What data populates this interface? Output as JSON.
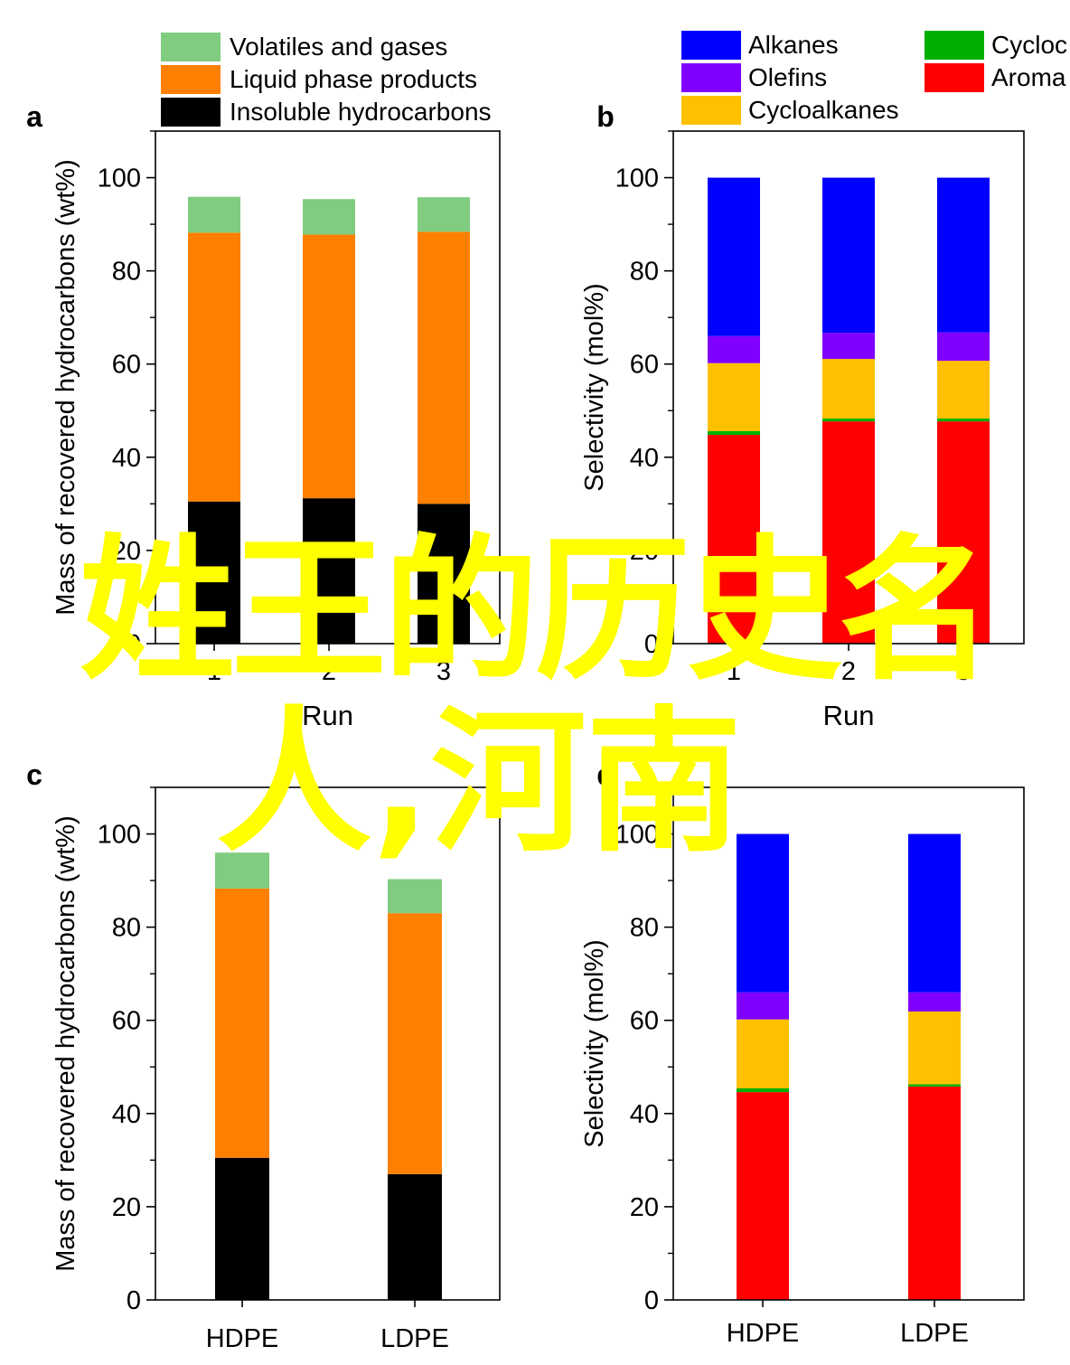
{
  "overlay_text": {
    "line1": "姓王的历史名",
    "line2": "人,河南",
    "color": "#ffff00"
  },
  "colors": {
    "volatiles": "#80cc80",
    "liquid": "#ff8000",
    "insoluble": "#000000",
    "alkanes": "#0000ff",
    "olefins": "#8000ff",
    "cycloalkanes": "#ffc000",
    "cycloolefins": "#00b000",
    "aromatics": "#ff0000"
  },
  "chart_data": [
    {
      "panel_label": "a",
      "type": "bar",
      "stacked": true,
      "categories": [
        "1",
        "2",
        "3"
      ],
      "xlabel": "Run",
      "ylabel": "Mass of recovered hydrocarbons (wt%)",
      "ylim": [
        0,
        110
      ],
      "yticks": [
        "0",
        "20",
        "40",
        "60",
        "80",
        "100"
      ],
      "legend": [
        "Volatiles and gases",
        "Liquid phase products",
        "Insoluble hydrocarbons"
      ],
      "series": [
        {
          "name": "Insoluble hydrocarbons",
          "color_key": "insoluble",
          "values": [
            30.5,
            31.2,
            30.0
          ]
        },
        {
          "name": "Liquid phase products",
          "color_key": "liquid",
          "values": [
            57.7,
            56.6,
            58.4
          ]
        },
        {
          "name": "Volatiles and gases",
          "color_key": "volatiles",
          "values": [
            7.7,
            7.6,
            7.4
          ]
        }
      ]
    },
    {
      "panel_label": "b",
      "type": "bar",
      "stacked": true,
      "categories": [
        "1",
        "2",
        "3"
      ],
      "xlabel": "Run",
      "ylabel": "Selectivity (mol%)",
      "ylim": [
        0,
        110
      ],
      "yticks": [
        "0",
        "20",
        "40",
        "60",
        "80",
        "100"
      ],
      "legend": [
        "Alkanes",
        "Olefins",
        "Cycloalkanes",
        "Cycloc",
        "Aroma"
      ],
      "series": [
        {
          "name": "Aroma",
          "color_key": "aromatics",
          "values": [
            44.8,
            47.7,
            47.7
          ]
        },
        {
          "name": "Cycloc",
          "color_key": "cycloolefins",
          "values": [
            0.8,
            0.6,
            0.6
          ]
        },
        {
          "name": "Cycloalkanes",
          "color_key": "cycloalkanes",
          "values": [
            14.6,
            12.8,
            12.4
          ]
        },
        {
          "name": "Olefins",
          "color_key": "olefins",
          "values": [
            5.8,
            5.6,
            6.1
          ]
        },
        {
          "name": "Alkanes",
          "color_key": "alkanes",
          "values": [
            34.0,
            33.3,
            33.2
          ]
        }
      ]
    },
    {
      "panel_label": "c",
      "type": "bar",
      "stacked": true,
      "categories": [
        "HDPE",
        "LDPE"
      ],
      "xlabel": "",
      "ylabel": "Mass of recovered hydrocarbons (wt%)",
      "ylim": [
        0,
        110
      ],
      "yticks": [
        "0",
        "20",
        "40",
        "60",
        "80",
        "100"
      ],
      "legend": [],
      "series": [
        {
          "name": "Insoluble hydrocarbons",
          "color_key": "insoluble",
          "values": [
            30.5,
            27.0
          ]
        },
        {
          "name": "Liquid phase products",
          "color_key": "liquid",
          "values": [
            57.8,
            56.0
          ]
        },
        {
          "name": "Volatiles and gases",
          "color_key": "volatiles",
          "values": [
            7.7,
            7.3
          ]
        }
      ]
    },
    {
      "panel_label": "d",
      "type": "bar",
      "stacked": true,
      "categories": [
        "HDPE",
        "LDPE"
      ],
      "xlabel": "",
      "ylabel": "Selectivity (mol%)",
      "ylim": [
        0,
        110
      ],
      "yticks": [
        "0",
        "20",
        "40",
        "60",
        "80",
        "100"
      ],
      "legend": [],
      "series": [
        {
          "name": "Aroma",
          "color_key": "aromatics",
          "values": [
            44.6,
            45.8
          ]
        },
        {
          "name": "Cycloc",
          "color_key": "cycloolefins",
          "values": [
            0.8,
            0.5
          ]
        },
        {
          "name": "Cycloalkanes",
          "color_key": "cycloalkanes",
          "values": [
            14.8,
            15.6
          ]
        },
        {
          "name": "Olefins",
          "color_key": "olefins",
          "values": [
            5.8,
            4.1
          ]
        },
        {
          "name": "Alkanes",
          "color_key": "alkanes",
          "values": [
            34.0,
            34.0
          ]
        }
      ]
    }
  ]
}
